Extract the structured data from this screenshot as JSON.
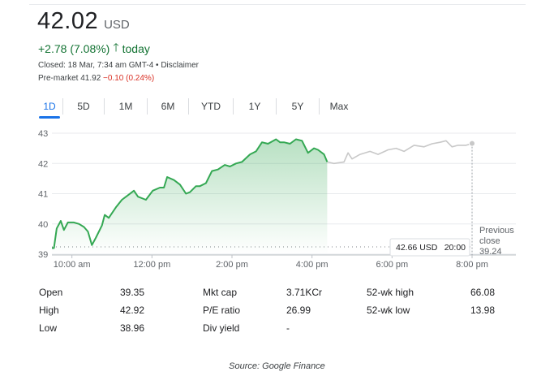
{
  "quote": {
    "price": "42.02",
    "currency": "USD",
    "change": "+2.78 (7.08%)",
    "change_arrow": "arrow-up-icon",
    "period": "today",
    "closed_text": "Closed: 18 Mar, 7:34 am GMT-4 • Disclaimer",
    "premarket_label": "Pre-market 41.92",
    "premarket_change": "−0.10 (0.24%)",
    "positive_color": "#137333",
    "negative_color": "#d93025"
  },
  "tabs": [
    "1D",
    "5D",
    "1M",
    "6M",
    "YTD",
    "1Y",
    "5Y",
    "Max"
  ],
  "active_tab": "1D",
  "tooltip": {
    "price": "42.66 USD",
    "time": "20:00"
  },
  "previous_close": {
    "line1": "Previous",
    "line2": "close",
    "value": "39.24"
  },
  "chart_data": {
    "type": "line",
    "yticks": [
      "43",
      "42",
      "41",
      "40",
      "39"
    ],
    "xticks": [
      "10:00 am",
      "12:00 pm",
      "2:00 pm",
      "4:00 pm",
      "6:00 pm",
      "8:00 pm"
    ],
    "ylim": [
      39,
      43
    ],
    "previous_close": 39.24,
    "series": [
      {
        "session": "regular",
        "color": "#34a853",
        "points": [
          [
            9.5,
            39.2
          ],
          [
            9.55,
            39.2
          ],
          [
            9.62,
            39.85
          ],
          [
            9.72,
            40.1
          ],
          [
            9.8,
            39.8
          ],
          [
            9.9,
            40.05
          ],
          [
            10.05,
            40.05
          ],
          [
            10.18,
            40.0
          ],
          [
            10.3,
            39.9
          ],
          [
            10.4,
            39.75
          ],
          [
            10.5,
            39.3
          ],
          [
            10.6,
            39.55
          ],
          [
            10.75,
            39.95
          ],
          [
            10.82,
            40.3
          ],
          [
            10.92,
            40.2
          ],
          [
            11.1,
            40.55
          ],
          [
            11.25,
            40.8
          ],
          [
            11.4,
            40.95
          ],
          [
            11.55,
            41.1
          ],
          [
            11.65,
            40.9
          ],
          [
            11.85,
            40.8
          ],
          [
            12.02,
            41.1
          ],
          [
            12.2,
            41.2
          ],
          [
            12.3,
            41.2
          ],
          [
            12.38,
            41.55
          ],
          [
            12.55,
            41.45
          ],
          [
            12.7,
            41.3
          ],
          [
            12.85,
            41.0
          ],
          [
            12.95,
            41.05
          ],
          [
            13.1,
            41.25
          ],
          [
            13.2,
            41.25
          ],
          [
            13.35,
            41.35
          ],
          [
            13.5,
            41.75
          ],
          [
            13.65,
            41.8
          ],
          [
            13.82,
            41.95
          ],
          [
            13.95,
            41.9
          ],
          [
            14.1,
            42.0
          ],
          [
            14.25,
            42.05
          ],
          [
            14.45,
            42.3
          ],
          [
            14.6,
            42.4
          ],
          [
            14.75,
            42.7
          ],
          [
            14.9,
            42.65
          ],
          [
            15.1,
            42.8
          ],
          [
            15.2,
            42.7
          ],
          [
            15.3,
            42.7
          ],
          [
            15.45,
            42.65
          ],
          [
            15.6,
            42.8
          ],
          [
            15.75,
            42.75
          ],
          [
            15.9,
            42.35
          ],
          [
            16.05,
            42.5
          ],
          [
            16.15,
            42.45
          ],
          [
            16.3,
            42.3
          ],
          [
            16.38,
            42.05
          ]
        ]
      },
      {
        "session": "after-hours",
        "color": "#c8c8c8",
        "points": [
          [
            16.38,
            42.05
          ],
          [
            16.55,
            42.0
          ],
          [
            16.8,
            42.05
          ],
          [
            16.9,
            42.35
          ],
          [
            17.0,
            42.15
          ],
          [
            17.2,
            42.3
          ],
          [
            17.45,
            42.4
          ],
          [
            17.65,
            42.3
          ],
          [
            17.9,
            42.45
          ],
          [
            18.1,
            42.5
          ],
          [
            18.3,
            42.4
          ],
          [
            18.55,
            42.6
          ],
          [
            18.8,
            42.55
          ],
          [
            19.0,
            42.65
          ],
          [
            19.2,
            42.7
          ],
          [
            19.35,
            42.75
          ],
          [
            19.5,
            42.55
          ],
          [
            19.65,
            42.6
          ],
          [
            19.85,
            42.6
          ],
          [
            20.0,
            42.66
          ]
        ]
      }
    ]
  },
  "stats": [
    {
      "label": "Open",
      "value": "39.35"
    },
    {
      "label": "High",
      "value": "42.92"
    },
    {
      "label": "Low",
      "value": "38.96"
    },
    {
      "label": "Mkt cap",
      "value": "3.71KCr"
    },
    {
      "label": "P/E ratio",
      "value": "26.99"
    },
    {
      "label": "Div yield",
      "value": "-"
    },
    {
      "label": "52-wk high",
      "value": "66.08"
    },
    {
      "label": "52-wk low",
      "value": "13.98"
    }
  ],
  "caption": "Source: Google Finance"
}
